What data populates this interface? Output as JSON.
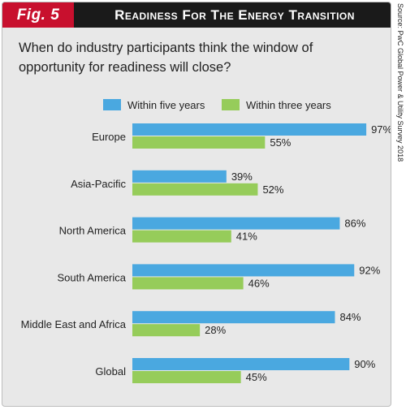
{
  "figure": {
    "badge": "Fig. 5",
    "title": "Readiness For The Energy Transition",
    "source": "Source: PwC Global Power & Utility Survey 2018",
    "question": "When do industry participants think the window of opportunity for readiness will close?"
  },
  "colors": {
    "five_years": "#4aa8e0",
    "three_years": "#96cc5a",
    "header_bg": "#1a1a1a",
    "badge_bg": "#c8102e",
    "panel_bg": "#e8e8e8"
  },
  "chart_data": {
    "type": "bar",
    "orientation": "horizontal",
    "categories": [
      "Europe",
      "Asia-Pacific",
      "North America",
      "South America",
      "Middle East and Africa",
      "Global"
    ],
    "series": [
      {
        "name": "Within five years",
        "values": [
          97,
          39,
          86,
          92,
          84,
          90
        ],
        "labels": [
          "97%",
          "39%",
          "86%",
          "92%",
          "84%",
          "90%"
        ]
      },
      {
        "name": "Within three years",
        "values": [
          55,
          52,
          41,
          46,
          28,
          45
        ],
        "labels": [
          "55%",
          "52%",
          "41%",
          "46%",
          "28%",
          "45%"
        ]
      }
    ],
    "xlim": [
      0,
      100
    ],
    "legend_position": "top",
    "grid": false
  }
}
